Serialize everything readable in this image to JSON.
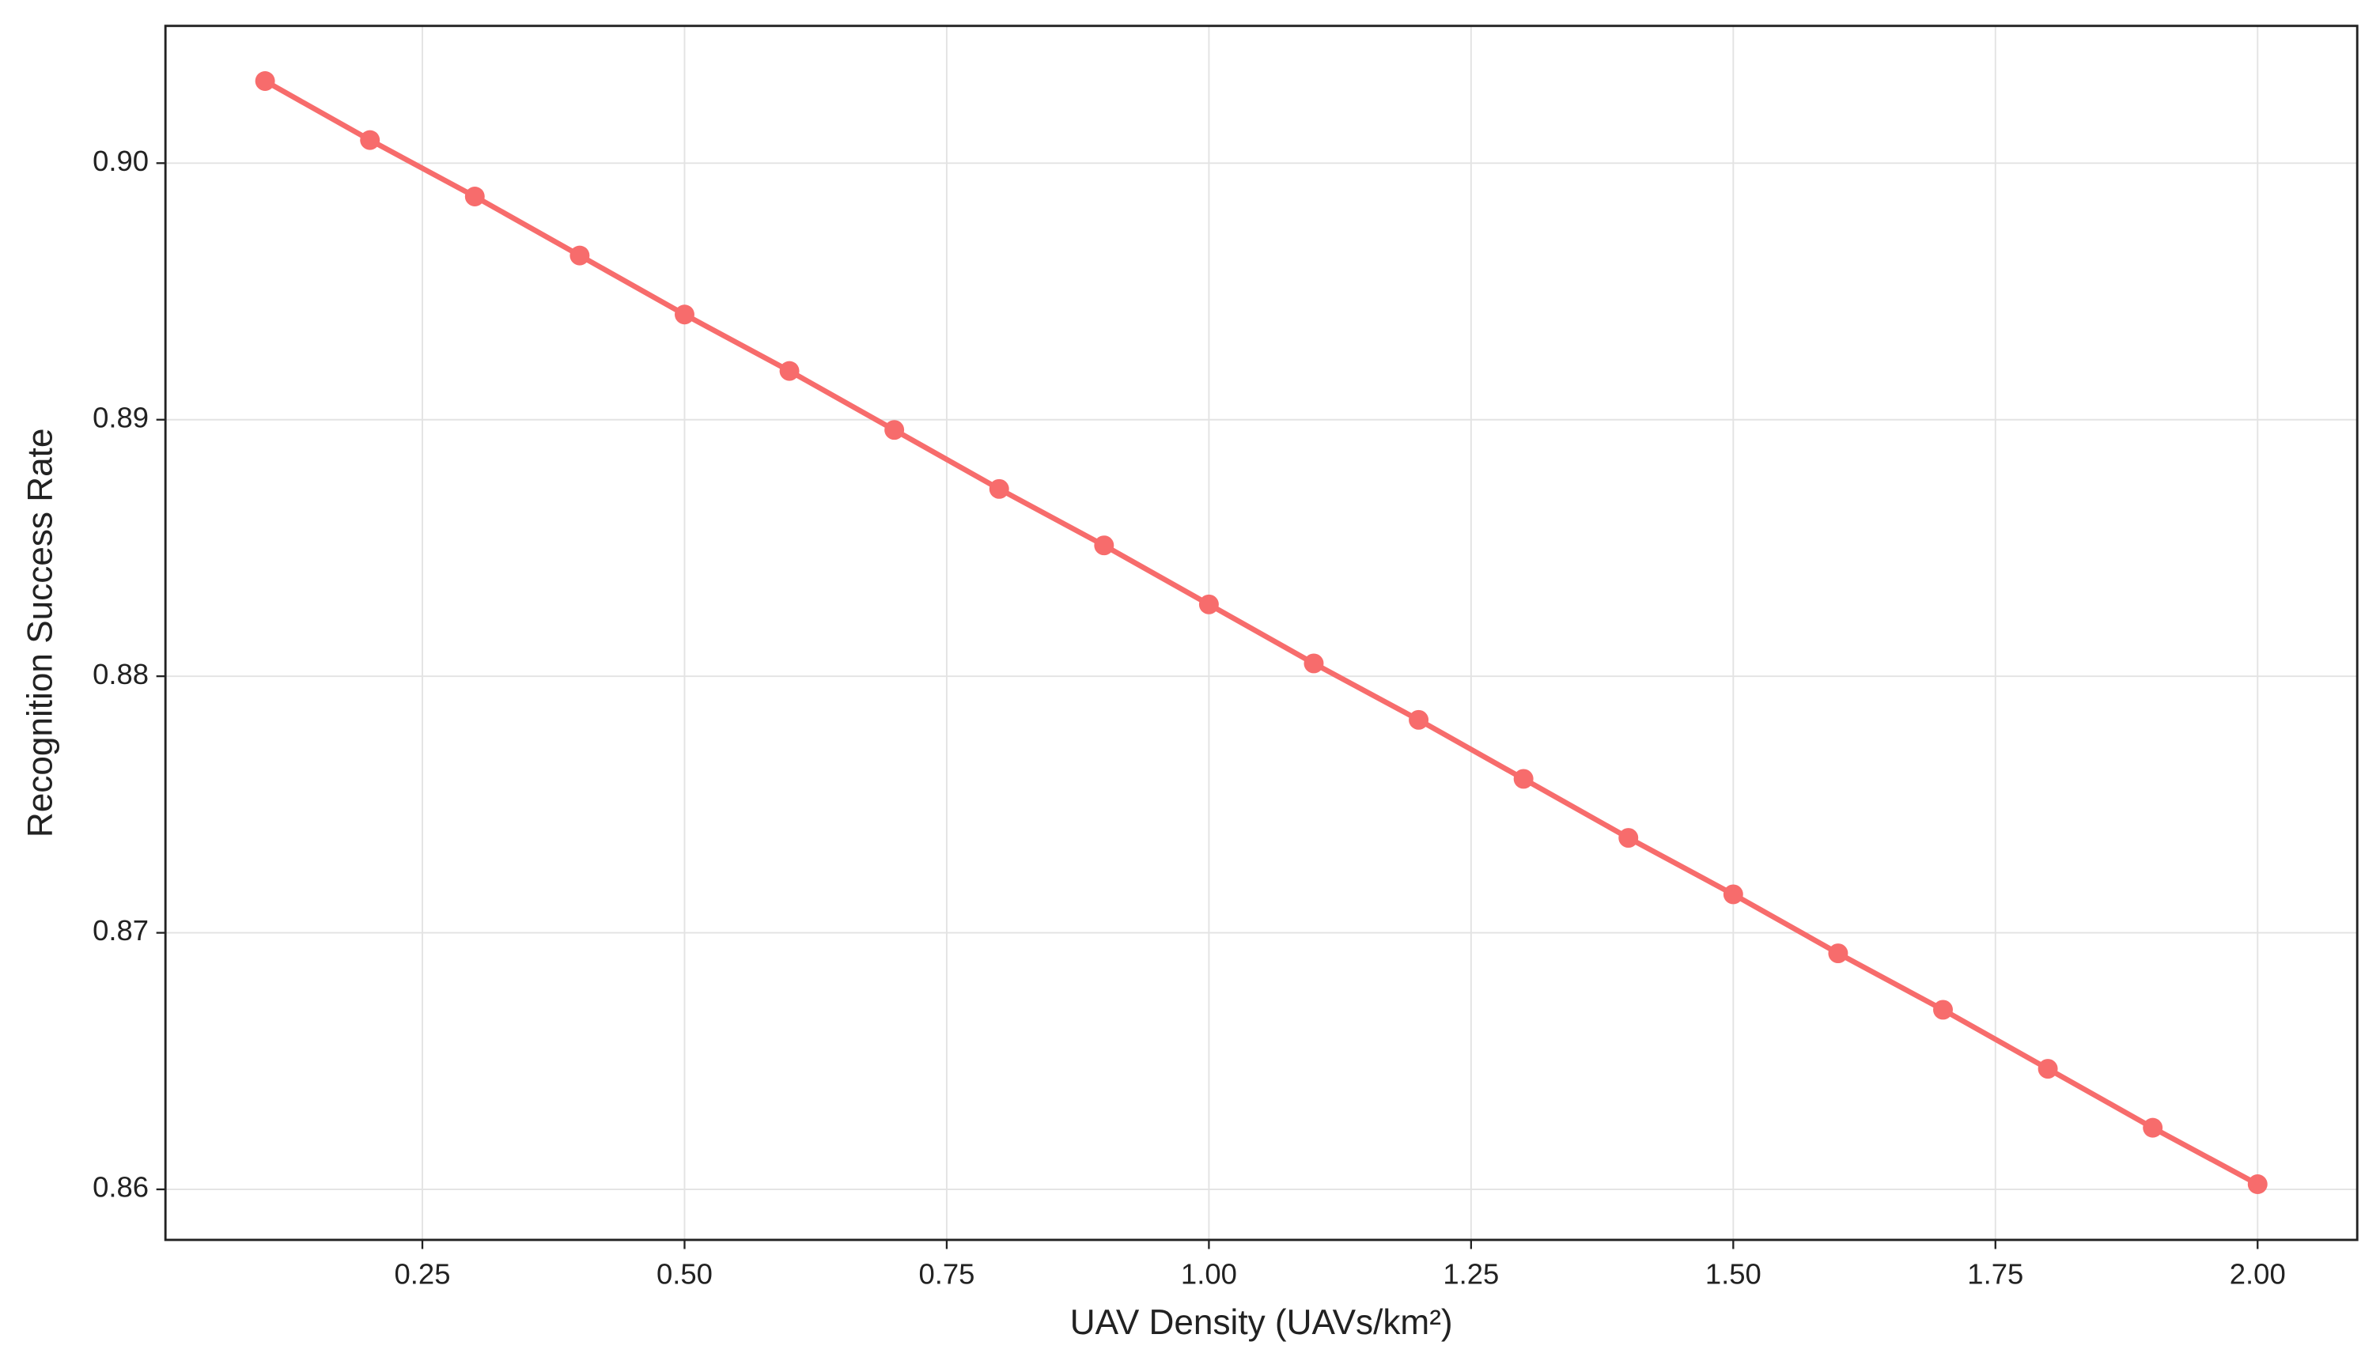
{
  "chart_data": {
    "type": "line",
    "x_label": "UAV Density (UAVs/km²)",
    "y_label": "Recognition Success Rate",
    "x": [
      0.1,
      0.2,
      0.3,
      0.4,
      0.5,
      0.6,
      0.7,
      0.8,
      0.9,
      1.0,
      1.1,
      1.2,
      1.3,
      1.4,
      1.5,
      1.6,
      1.7,
      1.8,
      1.9,
      2.0
    ],
    "series": [
      {
        "color": "#f76c6c",
        "values": [
          0.9032,
          0.9009,
          0.8987,
          0.8964,
          0.8941,
          0.8919,
          0.8896,
          0.8873,
          0.8851,
          0.8828,
          0.8805,
          0.8783,
          0.876,
          0.8737,
          0.8715,
          0.8692,
          0.867,
          0.8647,
          0.8624,
          0.8602
        ]
      }
    ],
    "xlim": [
      0.005,
      2.095
    ],
    "ylim": [
      0.85803,
      0.90535
    ],
    "xticks": [
      0.25,
      {
        "value": 0.5,
        "label": "0.50"
      },
      0.75,
      {
        "value": 1.0,
        "label": "1.00"
      },
      1.25,
      {
        "value": 1.5,
        "label": "1.50"
      },
      1.75,
      {
        "value": 2.0,
        "label": "2.00"
      }
    ],
    "yticks": [
      0.86,
      0.87,
      0.88,
      0.89,
      {
        "value": 0.9,
        "label": "0.90"
      }
    ],
    "grid": true
  }
}
